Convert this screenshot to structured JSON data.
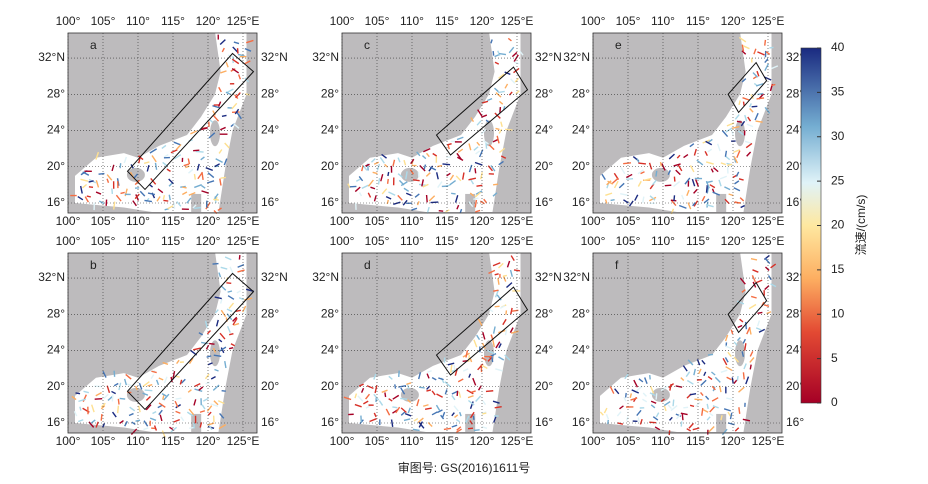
{
  "panels": [
    {
      "label": "a"
    },
    {
      "label": "c"
    },
    {
      "label": "e"
    },
    {
      "label": "b"
    },
    {
      "label": "d"
    },
    {
      "label": "f"
    }
  ],
  "lon_ticks": [
    {
      "value": 100,
      "label": "100°"
    },
    {
      "value": 105,
      "label": "105°"
    },
    {
      "value": 110,
      "label": "110°"
    },
    {
      "value": 115,
      "label": "115°"
    },
    {
      "value": 120,
      "label": "120°"
    },
    {
      "value": 125,
      "label": "125°E"
    }
  ],
  "lat_ticks": [
    {
      "value": 16,
      "label": "16°"
    },
    {
      "value": 20,
      "label": "20°"
    },
    {
      "value": 24,
      "label": "24°"
    },
    {
      "value": 28,
      "label": "28°"
    },
    {
      "value": 32,
      "label": "32°N"
    }
  ],
  "colorbar": {
    "label": "流速/(cm/s)",
    "lim": [
      0,
      40
    ],
    "ticks": [
      0,
      5,
      10,
      15,
      20,
      25,
      30,
      35,
      40
    ]
  },
  "footnote": "审图号: GS(2016)1611号"
}
